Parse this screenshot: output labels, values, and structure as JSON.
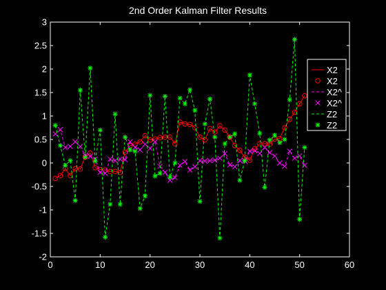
{
  "chart_data": {
    "type": "line",
    "title": "2nd Order Kalman Filter Results",
    "xlabel": "",
    "ylabel": "",
    "xlim": [
      0,
      60
    ],
    "ylim": [
      -2,
      3
    ],
    "xticks": [
      "0",
      "10",
      "20",
      "30",
      "40",
      "50",
      "60"
    ],
    "yticks": [
      "-2",
      "-1.5",
      "-1",
      "-0.5",
      "0",
      "0.5",
      "1",
      "1.5",
      "2",
      "2.5",
      "3"
    ],
    "grid": false,
    "legend_position": "right",
    "legend_labels": [
      "X2",
      "X2",
      "X2^",
      "X2^",
      "Z2",
      "Z2"
    ],
    "series": [
      {
        "name": "X2",
        "line": "solid",
        "marker": "o",
        "color": "#ff0000",
        "x": [
          1,
          2,
          3,
          4,
          5,
          6,
          7,
          8,
          9,
          10,
          11,
          12,
          13,
          14,
          15,
          16,
          17,
          18,
          19,
          20,
          21,
          22,
          23,
          24,
          25,
          26,
          27,
          28,
          29,
          30,
          31,
          32,
          33,
          34,
          35,
          36,
          37,
          38,
          39,
          40,
          41,
          42,
          43,
          44,
          45,
          46,
          47,
          48,
          49,
          50,
          51
        ],
        "y": [
          -0.33,
          -0.27,
          -0.12,
          -0.27,
          -0.12,
          -0.13,
          0.13,
          0.21,
          -0.1,
          -0.14,
          -0.15,
          -0.18,
          -0.18,
          -0.2,
          0.23,
          0.37,
          0.4,
          0.45,
          0.58,
          0.49,
          0.51,
          0.54,
          0.55,
          0.55,
          0.41,
          0.87,
          0.83,
          0.82,
          0.75,
          0.55,
          0.49,
          0.73,
          0.66,
          0.79,
          0.7,
          0.55,
          0.37,
          0.27,
          0.12,
          0.06,
          0.3,
          0.41,
          0.41,
          0.4,
          0.51,
          0.52,
          0.75,
          0.93,
          1.08,
          1.26,
          1.43
        ]
      },
      {
        "name": "X2^",
        "line": "dashed",
        "marker": "x",
        "color": "#ff00ff",
        "x": [
          1,
          2,
          3,
          4,
          5,
          6,
          7,
          8,
          9,
          10,
          11,
          12,
          13,
          14,
          15,
          16,
          17,
          18,
          19,
          20,
          21,
          22,
          23,
          24,
          25,
          26,
          27,
          28,
          29,
          30,
          31,
          32,
          33,
          34,
          35,
          36,
          37,
          38,
          39,
          40,
          41,
          42,
          43,
          44,
          45,
          46,
          47,
          48,
          49,
          50,
          51
        ],
        "y": [
          0.62,
          0.71,
          0.33,
          0.35,
          0.45,
          0.35,
          0.16,
          0.14,
          0.08,
          -0.2,
          -0.22,
          0.08,
          0.05,
          0.08,
          0.07,
          0.45,
          0.33,
          0.28,
          0.4,
          0.31,
          0.45,
          -0.07,
          -0.2,
          -0.37,
          -0.31,
          -0.05,
          0.03,
          -0.15,
          -0.08,
          0.05,
          0.04,
          0.05,
          0.06,
          0.1,
          0.2,
          -0.04,
          -0.08,
          0.05,
          0.04,
          0.25,
          0.26,
          0.2,
          0.33,
          0.22,
          0.15,
          0.0,
          -0.07,
          0.25,
          0.1,
          0.15,
          -0.05
        ]
      },
      {
        "name": "Z2",
        "line": "dashed",
        "marker": "*",
        "color": "#00ff00",
        "x": [
          1,
          2,
          3,
          4,
          5,
          6,
          7,
          8,
          9,
          10,
          11,
          12,
          13,
          14,
          15,
          16,
          17,
          18,
          19,
          20,
          21,
          22,
          23,
          24,
          25,
          26,
          27,
          28,
          29,
          30,
          31,
          32,
          33,
          34,
          35,
          36,
          37,
          38,
          39,
          40,
          41,
          42,
          43,
          44,
          45,
          46,
          47,
          48,
          49,
          50,
          51
        ],
        "y": [
          0.8,
          0.37,
          -0.05,
          0.05,
          -0.8,
          1.55,
          0.12,
          2.02,
          0.04,
          0.7,
          -1.58,
          -0.88,
          1.04,
          -0.88,
          0.55,
          0.28,
          0.25,
          -0.97,
          -0.7,
          1.44,
          -0.28,
          -0.22,
          1.42,
          -0.3,
          0.0,
          1.38,
          1.26,
          1.56,
          1.12,
          -0.82,
          0.83,
          1.36,
          0.55,
          -1.6,
          0.41,
          0.55,
          0.62,
          -0.37,
          0.05,
          1.87,
          1.26,
          0.63,
          -0.52,
          0.49,
          0.59,
          0.43,
          0.5,
          1.35,
          2.63,
          -1.2,
          0.33
        ]
      }
    ]
  }
}
